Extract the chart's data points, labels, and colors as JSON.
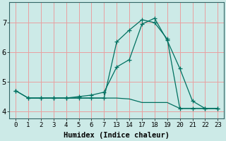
{
  "xlabel": "Humidex (Indice chaleur)",
  "bg_color": "#cceae7",
  "grid_color": "#e8a0a0",
  "line_color": "#007060",
  "cat_labels": [
    "0",
    "1",
    "2",
    "3",
    "4",
    "5",
    "6",
    "7",
    "1314",
    "",
    "17",
    "18",
    "19",
    "20",
    "21",
    "22",
    "23"
  ],
  "xtick_labels": [
    "0",
    "1",
    "2",
    "3",
    "4",
    "5",
    "6",
    "7",
    "13",
    "14",
    "17",
    "18",
    "19",
    "20",
    "21",
    "22",
    "23"
  ],
  "yticks": [
    4,
    5,
    6,
    7
  ],
  "ylim": [
    3.75,
    7.7
  ],
  "lines": [
    {
      "xi": [
        0,
        1,
        2,
        3,
        4,
        5,
        6,
        7,
        8,
        9,
        10,
        11,
        12,
        13,
        14,
        15,
        16
      ],
      "y": [
        4.7,
        4.45,
        4.45,
        4.45,
        4.45,
        4.45,
        4.45,
        4.45,
        6.35,
        6.75,
        7.1,
        7.0,
        6.45,
        4.1,
        4.1,
        4.1,
        4.1
      ],
      "marker": true
    },
    {
      "xi": [
        0,
        1,
        2,
        3,
        4,
        5,
        6,
        7,
        8,
        9,
        10,
        11,
        12,
        13,
        14,
        15,
        16
      ],
      "y": [
        4.7,
        4.45,
        4.45,
        4.45,
        4.45,
        4.5,
        4.55,
        4.65,
        5.5,
        5.75,
        6.95,
        7.15,
        6.4,
        5.45,
        4.35,
        4.1,
        4.1
      ],
      "marker": true
    },
    {
      "xi": [
        1,
        2,
        3,
        4,
        5,
        6,
        7,
        8,
        9,
        10,
        11,
        12,
        13,
        14,
        15,
        16
      ],
      "y": [
        4.45,
        4.45,
        4.45,
        4.45,
        4.45,
        4.45,
        4.45,
        4.45,
        4.42,
        4.3,
        4.3,
        4.3,
        4.1,
        4.1,
        4.1,
        4.1
      ],
      "marker": false
    }
  ]
}
